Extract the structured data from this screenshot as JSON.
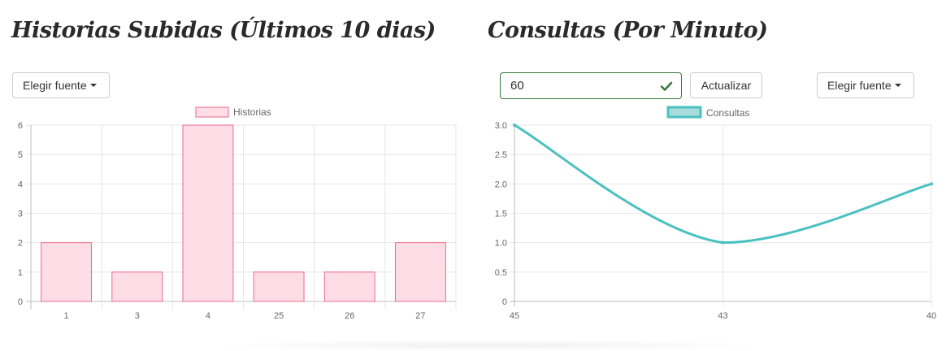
{
  "left_panel": {
    "title": "Historias Subidas (Últimos 10 dias)",
    "source_button_label": "Elegir fuente"
  },
  "right_panel": {
    "title": "Consultas (Por Minuto)",
    "interval_value": "60",
    "update_button_label": "Actualizar",
    "source_button_label": "Elegir fuente"
  },
  "colors": {
    "bar_fill": "#ffdde6",
    "bar_border": "#ea6a8d",
    "line_stroke": "#4bc0c0",
    "line_legend_fill": "#a8dcdc",
    "valid_green": "#3c763d"
  },
  "chart_data": [
    {
      "type": "bar",
      "categories": [
        "1",
        "3",
        "4",
        "25",
        "26",
        "27"
      ],
      "series": [
        {
          "name": "Historias",
          "values": [
            2,
            1,
            6,
            1,
            1,
            2
          ]
        }
      ],
      "ylim": [
        0,
        6
      ],
      "yticks": [
        "0",
        "1",
        "2",
        "3",
        "4",
        "5",
        "6"
      ],
      "grid": true,
      "legend": "top-center"
    },
    {
      "type": "line",
      "x": [
        "45",
        "43",
        "40"
      ],
      "series": [
        {
          "name": "Consultas",
          "values": [
            3.0,
            1.0,
            2.0
          ]
        }
      ],
      "ylim": [
        0,
        3
      ],
      "yticks": [
        "0",
        "0.5",
        "1.0",
        "1.5",
        "2.0",
        "2.5",
        "3.0"
      ],
      "grid": true,
      "legend": "top-center"
    }
  ]
}
